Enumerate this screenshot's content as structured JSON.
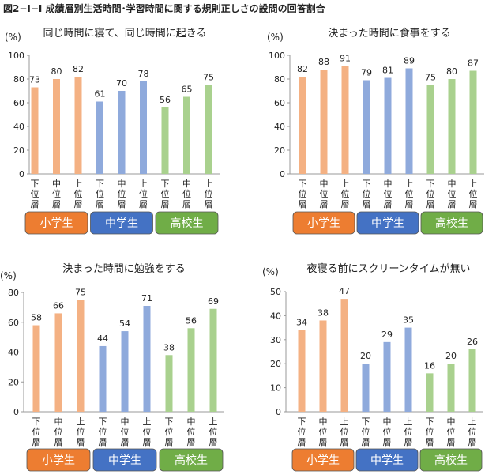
{
  "figure_title": "図2−Ⅰ−Ⅰ 成績層別生活時間･学習時間に関する規則正しさの設問の回答割合",
  "y_unit": "(%)",
  "school_groups": [
    {
      "label": "小学生",
      "color": "#ED7D31",
      "bar_color": "#F4B183"
    },
    {
      "label": "中学生",
      "color": "#4472C4",
      "bar_color": "#8FAADC"
    },
    {
      "label": "高校生",
      "color": "#70AD47",
      "bar_color": "#A9D18E"
    }
  ],
  "chart_data": [
    {
      "type": "bar",
      "title": "同じ時間に寝て、同じ時間に起きる",
      "ylabel": "(%)",
      "ylim": [
        0,
        100
      ],
      "yticks": [
        0,
        20,
        40,
        60,
        80,
        100
      ],
      "categories": [
        "下位層",
        "中位層",
        "上位層"
      ],
      "series": [
        {
          "name": "小学生",
          "values": [
            73,
            80,
            82
          ]
        },
        {
          "name": "中学生",
          "values": [
            61,
            70,
            78
          ]
        },
        {
          "name": "高校生",
          "values": [
            56,
            65,
            75
          ]
        }
      ]
    },
    {
      "type": "bar",
      "title": "決まった時間に食事をする",
      "ylabel": "(%)",
      "ylim": [
        0,
        100
      ],
      "yticks": [
        0,
        20,
        40,
        60,
        80,
        100
      ],
      "categories": [
        "下位層",
        "中位層",
        "上位層"
      ],
      "series": [
        {
          "name": "小学生",
          "values": [
            82,
            88,
            91
          ]
        },
        {
          "name": "中学生",
          "values": [
            79,
            81,
            89
          ]
        },
        {
          "name": "高校生",
          "values": [
            75,
            80,
            87
          ]
        }
      ]
    },
    {
      "type": "bar",
      "title": "決まった時間に勉強をする",
      "ylabel": "(%)",
      "ylim": [
        0,
        80
      ],
      "yticks": [
        0,
        20,
        40,
        60,
        80
      ],
      "categories": [
        "下位層",
        "中位層",
        "上位層"
      ],
      "series": [
        {
          "name": "小学生",
          "values": [
            58,
            66,
            75
          ]
        },
        {
          "name": "中学生",
          "values": [
            44,
            54,
            71
          ]
        },
        {
          "name": "高校生",
          "values": [
            38,
            56,
            69
          ]
        }
      ]
    },
    {
      "type": "bar",
      "title": "夜寝る前にスクリーンタイムが無い",
      "ylabel": "(%)",
      "ylim": [
        0,
        50
      ],
      "yticks": [
        0,
        10,
        20,
        30,
        40,
        50
      ],
      "categories": [
        "下位層",
        "中位層",
        "上位層"
      ],
      "series": [
        {
          "name": "小学生",
          "values": [
            34,
            38,
            47
          ]
        },
        {
          "name": "中学生",
          "values": [
            20,
            29,
            35
          ]
        },
        {
          "name": "高校生",
          "values": [
            16,
            20,
            26
          ]
        }
      ]
    }
  ]
}
